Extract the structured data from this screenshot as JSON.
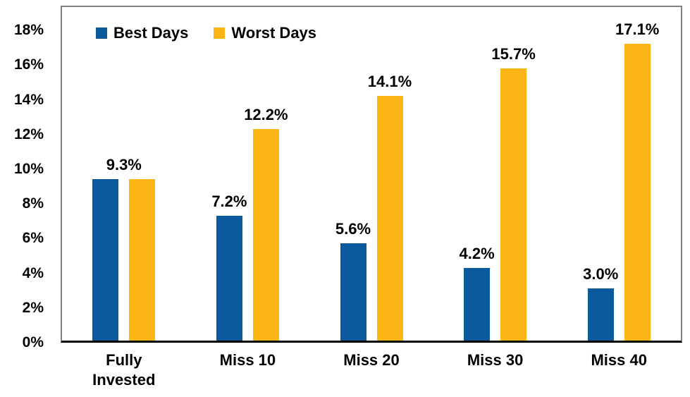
{
  "chart_data": {
    "type": "bar",
    "title": "",
    "xlabel": "",
    "ylabel": "",
    "categories": [
      "Fully Invested",
      "Miss 10",
      "Miss 20",
      "Miss 30",
      "Miss 40"
    ],
    "series": [
      {
        "name": "Best Days",
        "color": "#0B5A9E",
        "values": [
          9.3,
          7.2,
          5.6,
          4.2,
          3.0
        ]
      },
      {
        "name": "Worst Days",
        "color": "#FBB616",
        "values": [
          9.3,
          12.2,
          14.1,
          15.7,
          17.1
        ]
      }
    ],
    "data_labels": [
      {
        "group": 0,
        "anchor": "group-center",
        "text": "9.3%",
        "value": 9.3
      },
      {
        "group": 1,
        "series": 0,
        "text": "7.2%",
        "value": 7.2
      },
      {
        "group": 1,
        "series": 1,
        "text": "12.2%",
        "value": 12.2
      },
      {
        "group": 2,
        "series": 0,
        "text": "5.6%",
        "value": 5.6
      },
      {
        "group": 2,
        "series": 1,
        "text": "14.1%",
        "value": 14.1
      },
      {
        "group": 3,
        "series": 0,
        "text": "4.2%",
        "value": 4.2
      },
      {
        "group": 3,
        "series": 1,
        "text": "15.7%",
        "value": 15.7
      },
      {
        "group": 4,
        "series": 0,
        "text": "3.0%",
        "value": 3.0
      },
      {
        "group": 4,
        "series": 1,
        "text": "17.1%",
        "value": 17.1
      }
    ],
    "ylim": [
      0,
      18
    ],
    "y_tick_step": 2,
    "y_tick_labels": [
      "0%",
      "2%",
      "4%",
      "6%",
      "8%",
      "10%",
      "12%",
      "14%",
      "16%",
      "18%"
    ],
    "legend_position": "top-left-inside",
    "grid": false,
    "colors": {
      "plot_border": "#7f7f7f",
      "axis_line": "#000000",
      "text": "#000000",
      "background": "#ffffff"
    }
  }
}
